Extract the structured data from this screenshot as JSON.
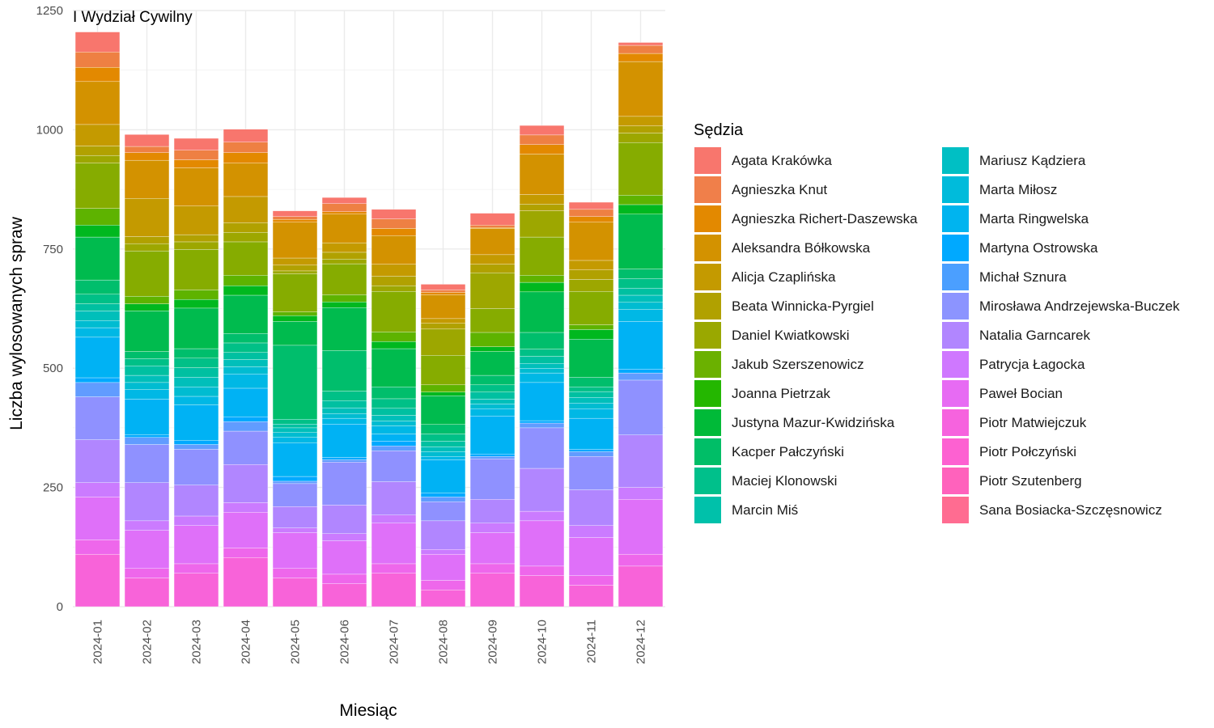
{
  "chart_data": {
    "type": "bar",
    "stacked": true,
    "title": "I Wydział Cywilny",
    "xlabel": "Miesiąc",
    "ylabel": "Liczba wylosowanych spraw",
    "ylim": [
      0,
      1250
    ],
    "yticks": [
      0,
      250,
      500,
      750,
      1000,
      1250
    ],
    "grid": true,
    "legend_title": "Sędzia",
    "legend_position": "right",
    "categories": [
      "2024-01",
      "2024-02",
      "2024-03",
      "2024-04",
      "2024-05",
      "2024-06",
      "2024-07",
      "2024-08",
      "2024-09",
      "2024-10",
      "2024-11",
      "2024-12"
    ],
    "series": [
      {
        "name": "Agata Krakówka",
        "color": "#F8766D",
        "values": [
          42,
          25,
          25,
          27,
          12,
          13,
          20,
          12,
          25,
          20,
          15,
          6
        ]
      },
      {
        "name": "Agnieszka Knut",
        "color": "#EE8043",
        "values": [
          32,
          13,
          20,
          22,
          6,
          17,
          20,
          5,
          5,
          20,
          15,
          17
        ]
      },
      {
        "name": "Agnieszka Richert-Daszewska",
        "color": "#E38900",
        "values": [
          30,
          16,
          17,
          22,
          6,
          5,
          15,
          5,
          2,
          20,
          12,
          17
        ]
      },
      {
        "name": "Aleksandra Bółkowska",
        "color": "#D39200",
        "values": [
          90,
          80,
          80,
          70,
          75,
          60,
          60,
          50,
          55,
          85,
          80,
          115
        ]
      },
      {
        "name": "Alicja Czaplińska",
        "color": "#C49A00",
        "values": [
          45,
          80,
          60,
          55,
          15,
          20,
          25,
          10,
          20,
          20,
          20,
          20
        ]
      },
      {
        "name": "Beata Winnicka-Pyrgiel",
        "color": "#B1A100",
        "values": [
          20,
          15,
          15,
          20,
          12,
          14,
          20,
          12,
          18,
          14,
          20,
          15
        ]
      },
      {
        "name": "Daniel Kwiatkowski",
        "color": "#9DA700",
        "values": [
          16,
          15,
          16,
          20,
          6,
          10,
          12,
          55,
          75,
          55,
          25,
          20
        ]
      },
      {
        "name": "Jakub Szerszenowicz",
        "color": "#86AC00",
        "values": [
          95,
          95,
          85,
          70,
          80,
          65,
          85,
          62,
          50,
          80,
          70,
          110
        ]
      },
      {
        "name": "Joanna Pietrzak",
        "color": "#5EB300",
        "values": [
          35,
          16,
          20,
          22,
          8,
          15,
          20,
          15,
          30,
          15,
          10,
          20
        ]
      },
      {
        "name": "Justyna Mazur-Kwidzińska",
        "color": "#00B81F",
        "values": [
          25,
          15,
          18,
          20,
          12,
          12,
          15,
          8,
          10,
          20,
          20,
          20
        ]
      },
      {
        "name": "Kacper Pałczyński",
        "color": "#00BB4E",
        "values": [
          90,
          85,
          85,
          80,
          50,
          90,
          80,
          60,
          50,
          85,
          80,
          115
        ]
      },
      {
        "name": "Maciej Klonowski",
        "color": "#00BE6C",
        "values": [
          30,
          15,
          20,
          20,
          155,
          85,
          25,
          20,
          20,
          35,
          20,
          20
        ]
      },
      {
        "name": "Marcin Miś",
        "color": "#00C087",
        "values": [
          20,
          15,
          20,
          20,
          10,
          20,
          20,
          15,
          15,
          15,
          10,
          20
        ]
      },
      {
        "name": "Mariusz Kądziera",
        "color": "#00C0A1",
        "values": [
          15,
          20,
          20,
          15,
          8,
          15,
          15,
          12,
          15,
          15,
          12,
          15
        ]
      },
      {
        "name": "Marta Miłosz",
        "color": "#00BFBA",
        "values": [
          20,
          15,
          20,
          15,
          10,
          12,
          12,
          10,
          10,
          10,
          12,
          15
        ]
      },
      {
        "name": "Marta Ringwelska",
        "color": "#00BCD1",
        "values": [
          15,
          15,
          20,
          15,
          10,
          10,
          10,
          10,
          10,
          10,
          12,
          15
        ]
      },
      {
        "name": "Martyna Ostrowska",
        "color": "#00B8E5",
        "values": [
          20,
          20,
          18,
          30,
          12,
          12,
          17,
          7,
          15,
          20,
          20,
          25
        ]
      },
      {
        "name": "Michał Sznura",
        "color": "#00B2F4",
        "values": [
          85,
          75,
          75,
          60,
          70,
          70,
          15,
          70,
          80,
          80,
          65,
          100
        ]
      },
      {
        "name": "Mirosława Andrzejewska-Buczek",
        "color": "#00A9FF",
        "values": [
          10,
          5,
          8,
          10,
          10,
          5,
          10,
          8,
          5,
          5,
          5,
          8
        ]
      },
      {
        "name": "Natalia Garncarek",
        "color": "#619CFF",
        "values": [
          30,
          15,
          10,
          20,
          5,
          5,
          10,
          10,
          5,
          10,
          10,
          15
        ]
      },
      {
        "name": "Patrycja Łagocka",
        "color": "#8F91FF",
        "values": [
          90,
          80,
          75,
          70,
          48,
          90,
          65,
          40,
          85,
          85,
          70,
          115
        ]
      },
      {
        "name": "Paweł Bocian",
        "color": "#B186FF",
        "values": [
          90,
          80,
          65,
          80,
          45,
          60,
          70,
          60,
          50,
          90,
          75,
          110
        ]
      },
      {
        "name": "Piotr Matwiejczuk",
        "color": "#CB7BFF",
        "values": [
          30,
          20,
          20,
          20,
          10,
          15,
          17,
          10,
          20,
          20,
          25,
          25
        ]
      },
      {
        "name": "Piotr Połczyński",
        "color": "#DF70F9",
        "values": [
          90,
          80,
          80,
          75,
          75,
          70,
          85,
          55,
          65,
          95,
          80,
          115
        ]
      },
      {
        "name": "Piotr Szutenberg",
        "color": "#EE67EB",
        "values": [
          30,
          20,
          20,
          20,
          20,
          20,
          20,
          20,
          20,
          20,
          20,
          25
        ]
      },
      {
        "name": "Sana Bosiacka-Szczęsnowicz",
        "color": "#F863D9",
        "values": [
          110,
          60,
          70,
          103,
          60,
          48,
          70,
          35,
          70,
          65,
          45,
          85
        ]
      }
    ]
  },
  "legend_items": [
    {
      "name": "Agata Krakówka",
      "color": "#F8766D"
    },
    {
      "name": "Agnieszka Knut",
      "color": "#F07F4A"
    },
    {
      "name": "Agnieszka Richert-Daszewska",
      "color": "#E38900"
    },
    {
      "name": "Aleksandra Bółkowska",
      "color": "#D39200"
    },
    {
      "name": "Alicja Czaplińska",
      "color": "#C49A00"
    },
    {
      "name": "Beata Winnicka-Pyrgiel",
      "color": "#B1A100"
    },
    {
      "name": "Daniel Kwiatkowski",
      "color": "#9AA800"
    },
    {
      "name": "Jakub Szerszenowicz",
      "color": "#6BB100"
    },
    {
      "name": "Joanna Pietrzak",
      "color": "#24B700"
    },
    {
      "name": "Justyna Mazur-Kwidzińska",
      "color": "#00BA38"
    },
    {
      "name": "Kacper Pałczyński",
      "color": "#00BE67"
    },
    {
      "name": "Maciej Klonowski",
      "color": "#00C08B"
    },
    {
      "name": "Marcin Miś",
      "color": "#00C1AA"
    },
    {
      "name": "Mariusz Kądziera",
      "color": "#00BFC4"
    },
    {
      "name": "Marta Miłosz",
      "color": "#00BBDB"
    },
    {
      "name": "Marta Ringwelska",
      "color": "#00B4EF"
    },
    {
      "name": "Martyna Ostrowska",
      "color": "#00A9FF"
    },
    {
      "name": "Michał Sznura",
      "color": "#4B9FFF"
    },
    {
      "name": "Mirosława Andrzejewska-Buczek",
      "color": "#8C94FF"
    },
    {
      "name": "Natalia Garncarek",
      "color": "#B186FF"
    },
    {
      "name": "Patrycja Łagocka",
      "color": "#CF78FF"
    },
    {
      "name": "Paweł Bocian",
      "color": "#E76BF3"
    },
    {
      "name": "Piotr Matwiejczuk",
      "color": "#F663DE"
    },
    {
      "name": "Piotr Połczyński",
      "color": "#FD61D1"
    },
    {
      "name": "Piotr Szutenberg",
      "color": "#FF62BC"
    },
    {
      "name": "Sana Bosiacka-Szczęsnowicz",
      "color": "#FF6C91"
    }
  ]
}
